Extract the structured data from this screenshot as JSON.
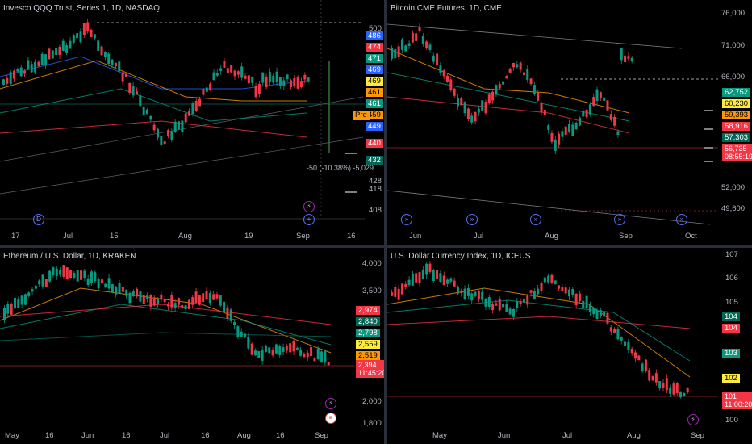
{
  "panels": [
    {
      "id": "qqq",
      "title": "Invesco QQQ Trust, Series 1, 1D, NASDAQ",
      "y_ticks": [
        "500",
        "428",
        "418",
        "408"
      ],
      "badges": [
        {
          "text": "486",
          "color": "#2962ff"
        },
        {
          "text": "474",
          "color": "#f23645"
        },
        {
          "text": "471",
          "color": "#089981"
        },
        {
          "text": "469",
          "color": "#2962ff"
        },
        {
          "text": "469",
          "color": "#ffeb3b"
        },
        {
          "text": "461",
          "color": "#ff9800"
        },
        {
          "text": "461",
          "color": "#089981"
        },
        {
          "text": "459",
          "color": "#ff9800"
        },
        {
          "text": "449",
          "color": "#2962ff"
        },
        {
          "text": "440",
          "color": "#f23645"
        },
        {
          "text": "432",
          "color": "#056656"
        }
      ],
      "pre_label": "Pre",
      "x_ticks": [
        "17",
        "Jul",
        "15",
        "Aug",
        "19",
        "Sep",
        "16"
      ],
      "annotation": "-50 (-10.38%) -5,029"
    },
    {
      "id": "btc",
      "title": "Bitcoin CME Futures, 1D, CME",
      "y_ticks": [
        "76,000",
        "71,000",
        "66,000",
        "52,000",
        "49,600"
      ],
      "badges": [
        {
          "text": "62,752",
          "color": "#089981"
        },
        {
          "text": "60,230",
          "color": "#ffeb3b"
        },
        {
          "text": "59,393",
          "color": "#ff9800"
        },
        {
          "text": "58,916",
          "color": "#f23645"
        },
        {
          "text": "57,303",
          "color": "#056656"
        }
      ],
      "last_price": "56,735",
      "countdown": "08:55:19",
      "x_ticks": [
        "Jun",
        "Jul",
        "Aug",
        "Sep",
        "Oct"
      ]
    },
    {
      "id": "eth",
      "title": "Ethereum / U.S. Dollar, 1D, KRAKEN",
      "y_ticks": [
        "4,000",
        "3,500",
        "2,000",
        "1,800"
      ],
      "badges": [
        {
          "text": "2,974",
          "color": "#f23645"
        },
        {
          "text": "2,840",
          "color": "#056656"
        },
        {
          "text": "2,798",
          "color": "#089981"
        },
        {
          "text": "2,559",
          "color": "#ffeb3b"
        },
        {
          "text": "2,519",
          "color": "#ff9800"
        }
      ],
      "last_price": "2,394",
      "countdown": "11:45:20",
      "x_ticks": [
        "May",
        "16",
        "Jun",
        "16",
        "Jul",
        "16",
        "Aug",
        "16",
        "Sep"
      ]
    },
    {
      "id": "dxy",
      "title": "U.S. Dollar Currency Index, 1D, ICEUS",
      "y_ticks": [
        "107",
        "106",
        "105",
        "100"
      ],
      "badges": [
        {
          "text": "104",
          "color": "#056656"
        },
        {
          "text": "104",
          "color": "#f23645"
        },
        {
          "text": "103",
          "color": "#089981"
        },
        {
          "text": "102",
          "color": "#ffeb3b"
        }
      ],
      "last_price": "101",
      "countdown": "11:00:20",
      "x_ticks": [
        "May",
        "Jun",
        "Jul",
        "Aug",
        "Sep"
      ]
    }
  ],
  "colors": {
    "up": "#089981",
    "down": "#f23645",
    "bg": "#000000",
    "grid": "#1e222d"
  }
}
